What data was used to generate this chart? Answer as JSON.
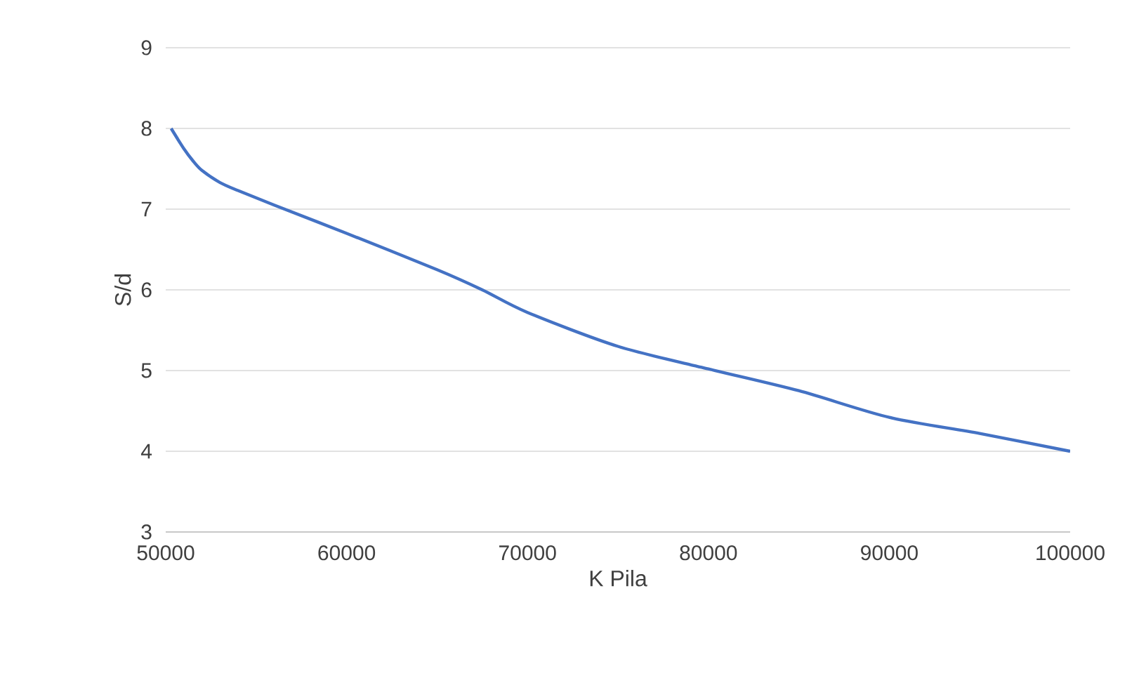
{
  "chart_data": {
    "type": "line",
    "xlabel": "K Pila",
    "ylabel": "S/d",
    "x": [
      50300,
      51000,
      51500,
      52000,
      53000,
      54000,
      56000,
      60000,
      65000,
      67500,
      70000,
      75000,
      80000,
      85000,
      90000,
      95000,
      100000
    ],
    "series": [
      {
        "color": "#4472c4",
        "values": [
          8.0,
          7.75,
          7.6,
          7.48,
          7.33,
          7.23,
          7.05,
          6.7,
          6.25,
          6.0,
          5.72,
          5.3,
          5.02,
          4.75,
          4.42,
          4.22,
          4.0
        ]
      }
    ],
    "xlim": [
      50000,
      100000
    ],
    "xticks": [
      50000,
      60000,
      70000,
      80000,
      90000,
      100000
    ],
    "ylim": [
      3,
      9
    ],
    "yticks": [
      3,
      4,
      5,
      6,
      7,
      8,
      9
    ],
    "grid": "y",
    "marker": "none",
    "line_style": "solid"
  }
}
